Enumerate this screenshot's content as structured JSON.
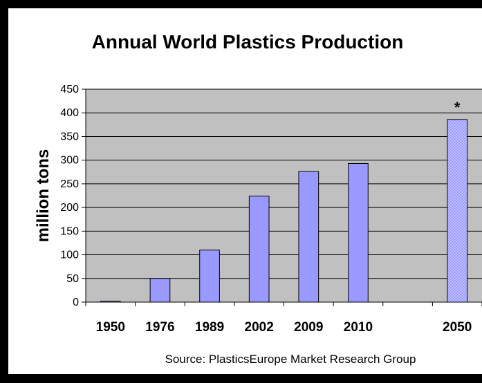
{
  "chart_data": {
    "type": "bar",
    "title": "Annual World Plastics Production",
    "xlabel": "",
    "ylabel": "million tons",
    "ylim": [
      0,
      450
    ],
    "yticks": [
      0,
      50,
      100,
      150,
      200,
      250,
      300,
      350,
      400,
      450
    ],
    "grid": true,
    "legend": "none",
    "categories": [
      "1950",
      "1976",
      "1989",
      "2002",
      "2009",
      "2010",
      "",
      "2050"
    ],
    "values": [
      2,
      50,
      110,
      224,
      276,
      293,
      null,
      386
    ],
    "projected": [
      false,
      false,
      false,
      false,
      false,
      false,
      false,
      true
    ],
    "annotation": {
      "category": "2050",
      "text": "*"
    },
    "source": "Source: PlasticsEurope Market Research Group",
    "colors": {
      "plot_background": "#c0c0c0",
      "bar_fill": "#9999ff",
      "projection_fill": "#ccccff",
      "projection_pattern": "#9999ff",
      "gridline": "#000000",
      "frame": "#000000"
    }
  }
}
